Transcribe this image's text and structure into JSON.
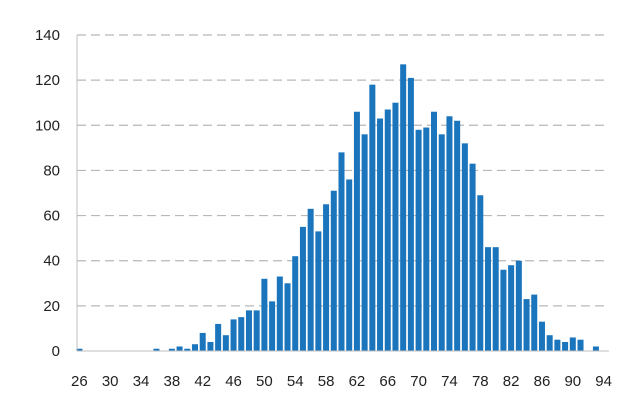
{
  "chart_data": {
    "type": "bar",
    "title": "",
    "xlabel": "",
    "ylabel": "",
    "x": [
      26,
      27,
      28,
      29,
      30,
      31,
      32,
      33,
      34,
      35,
      36,
      37,
      38,
      39,
      40,
      41,
      42,
      43,
      44,
      45,
      46,
      47,
      48,
      49,
      50,
      51,
      52,
      53,
      54,
      55,
      56,
      57,
      58,
      59,
      60,
      61,
      62,
      63,
      64,
      65,
      66,
      67,
      68,
      69,
      70,
      71,
      72,
      73,
      74,
      75,
      76,
      77,
      78,
      79,
      80,
      81,
      82,
      83,
      84,
      85,
      86,
      87,
      88,
      89,
      90,
      91,
      92,
      93,
      94
    ],
    "values": [
      1,
      0,
      0,
      0,
      0,
      0,
      0,
      0,
      0,
      0,
      1,
      0,
      1,
      2,
      1,
      3,
      8,
      4,
      12,
      7,
      14,
      15,
      18,
      18,
      32,
      22,
      33,
      30,
      42,
      55,
      63,
      53,
      65,
      71,
      88,
      76,
      106,
      96,
      118,
      103,
      107,
      110,
      127,
      121,
      98,
      99,
      106,
      96,
      104,
      102,
      92,
      83,
      69,
      46,
      46,
      36,
      38,
      40,
      23,
      25,
      13,
      7,
      5,
      4,
      6,
      5,
      0,
      2,
      0
    ],
    "xticks": [
      26,
      30,
      34,
      38,
      42,
      46,
      50,
      54,
      58,
      62,
      66,
      70,
      74,
      78,
      82,
      86,
      90,
      94
    ],
    "yticks": [
      0,
      20,
      40,
      60,
      80,
      100,
      120,
      140
    ],
    "ylim": [
      0,
      140
    ],
    "xlim": [
      26,
      94
    ],
    "grid": "horizontal dashed",
    "legend": "none",
    "colors": {
      "bar": "#1a75bd",
      "grid": "#b8b8b8",
      "axis": "#bfbfbf",
      "text": "#222222"
    }
  }
}
